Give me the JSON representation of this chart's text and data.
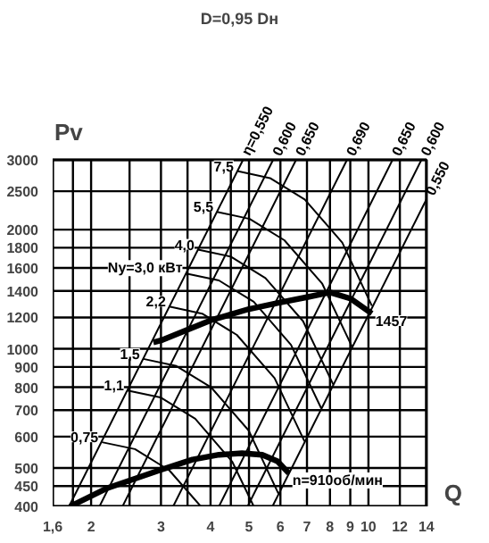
{
  "chart_data": {
    "type": "line",
    "title": "D=0,95 Dн",
    "xlabel": "Q",
    "ylabel": "Pv",
    "log": "xy",
    "grid": true,
    "marker": "none",
    "line_style": "solid",
    "xlim": [
      1.6,
      14
    ],
    "ylim": [
      400,
      3000
    ],
    "xticks": [
      {
        "value": 1.6,
        "label": "1,6"
      },
      {
        "value": 1.8,
        "label": null
      },
      2,
      {
        "value": 2.5,
        "label": null
      },
      3,
      {
        "value": 3.5,
        "label": null
      },
      4,
      {
        "value": 4.5,
        "label": null
      },
      5,
      6,
      7,
      8,
      9,
      10,
      12,
      14
    ],
    "yticks": [
      400,
      450,
      500,
      600,
      700,
      800,
      900,
      1000,
      1200,
      1400,
      1600,
      1800,
      2000,
      2500,
      3000
    ],
    "series": [
      {
        "name": "n=910об/мин",
        "color": "#000000",
        "x": [
          1.77,
          2.2,
          3,
          3.6,
          4.2,
          4.8,
          5.4,
          5.9,
          6.3
        ],
        "values": [
          400,
          445,
          495,
          525,
          540,
          545,
          540,
          520,
          485
        ]
      },
      {
        "name": "1457",
        "color": "#000000",
        "x": [
          2.87,
          3,
          4,
          5,
          6,
          7,
          8,
          9,
          10.2
        ],
        "values": [
          1038,
          1050,
          1180,
          1260,
          1310,
          1350,
          1388,
          1340,
          1228
        ]
      },
      {
        "name": "η=0,550",
        "color": "#000000",
        "x": [
          1.76,
          4.83
        ],
        "values": [
          400,
          3000
        ]
      },
      {
        "name": "0,600",
        "color": "#000000",
        "x": [
          2.1,
          5.75
        ],
        "values": [
          400,
          3000
        ]
      },
      {
        "name": "0,650",
        "color": "#000000",
        "x": [
          2.4,
          6.57
        ],
        "values": [
          400,
          3000
        ]
      },
      {
        "name": "0,690",
        "color": "#000000",
        "x": [
          3.22,
          8.83
        ],
        "values": [
          400,
          3000
        ]
      },
      {
        "name": "0,650",
        "color": "#000000",
        "x": [
          4.2,
          11.5
        ],
        "values": [
          400,
          3000
        ]
      },
      {
        "name": "0,600",
        "color": "#000000",
        "x": [
          4.96,
          13.6
        ],
        "values": [
          400,
          3000
        ]
      },
      {
        "name": "0,550",
        "color": "#000000",
        "x": [
          5.73,
          14
        ],
        "values": [
          400,
          2385
        ]
      },
      {
        "name": "0,75",
        "color": "#000000",
        "x": [
          2.13,
          2.58,
          3.15,
          3.78
        ],
        "values": [
          581,
          558,
          493,
          400
        ]
      },
      {
        "name": "1,1",
        "color": "#000000",
        "x": [
          2.47,
          2.99,
          3.66,
          4.54,
          5.14
        ],
        "values": [
          785,
          754,
          666,
          518,
          400
        ]
      },
      {
        "name": "1,5",
        "color": "#000000",
        "x": [
          2.71,
          3.28,
          4.01,
          4.99,
          5.93
        ],
        "values": [
          943,
          905,
          800,
          622,
          431
        ]
      },
      {
        "name": "2,2",
        "color": "#000000",
        "x": [
          3.15,
          3.81,
          4.66,
          5.8,
          6.9
        ],
        "values": [
          1278,
          1227,
          1084,
          843,
          584
        ]
      },
      {
        "name": "Ny=3,0 кВт",
        "color": "#000000",
        "x": [
          3.47,
          4.2,
          5.14,
          6.38,
          7.6
        ],
        "values": [
          1550,
          1488,
          1314,
          1023,
          708
        ]
      },
      {
        "name": "4,0",
        "color": "#000000",
        "x": [
          3.72,
          4.5,
          5.5,
          6.84,
          8.15
        ],
        "values": [
          1780,
          1709,
          1509,
          1175,
          813
        ]
      },
      {
        "name": "5,5",
        "color": "#000000",
        "x": [
          4.15,
          5.02,
          6.14,
          7.64,
          9.09
        ],
        "values": [
          2217,
          2128,
          1880,
          1463,
          1013
        ]
      },
      {
        "name": "7,5",
        "color": "#000000",
        "x": [
          4.67,
          5.65,
          6.91,
          8.59,
          10.2
        ],
        "values": [
          2810,
          2698,
          2383,
          1855,
          1284
        ]
      }
    ]
  }
}
